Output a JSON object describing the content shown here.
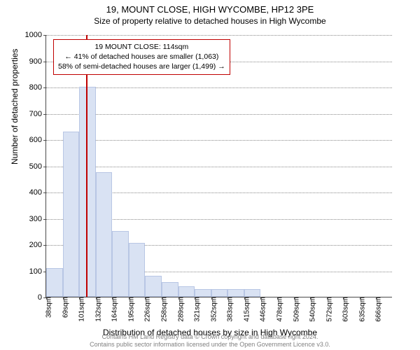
{
  "title_main": "19, MOUNT CLOSE, HIGH WYCOMBE, HP12 3PE",
  "title_sub": "Size of property relative to detached houses in High Wycombe",
  "ylabel": "Number of detached properties",
  "xlabel": "Distribution of detached houses by size in High Wycombe",
  "footer_line1": "Contains HM Land Registry data © Crown copyright and database right 2024.",
  "footer_line2": "Contains public sector information licensed under the Open Government Licence v3.0.",
  "chart": {
    "type": "histogram",
    "ylim": [
      0,
      1000
    ],
    "ytick_step": 100,
    "bar_fill": "#d9e2f3",
    "bar_border": "#b8c6e4",
    "grid_color": "#888888",
    "axis_color": "#4a4a4a",
    "background_color": "#ffffff",
    "marker_line_color": "#c00000",
    "marker_x_position": 114,
    "x_start": 38,
    "x_step": 31.4,
    "categories": [
      "38sqm",
      "69sqm",
      "101sqm",
      "132sqm",
      "164sqm",
      "195sqm",
      "226sqm",
      "258sqm",
      "289sqm",
      "321sqm",
      "352sqm",
      "383sqm",
      "415sqm",
      "446sqm",
      "478sqm",
      "509sqm",
      "540sqm",
      "572sqm",
      "603sqm",
      "635sqm",
      "666sqm"
    ],
    "values": [
      110,
      630,
      800,
      475,
      250,
      205,
      80,
      55,
      40,
      30,
      30,
      30,
      30,
      0,
      0,
      0,
      0,
      0,
      0,
      0,
      0
    ]
  },
  "annotation": {
    "line1": "19 MOUNT CLOSE: 114sqm",
    "line2": "← 41% of detached houses are smaller (1,063)",
    "line3": "58% of semi-detached houses are larger (1,499) →"
  }
}
